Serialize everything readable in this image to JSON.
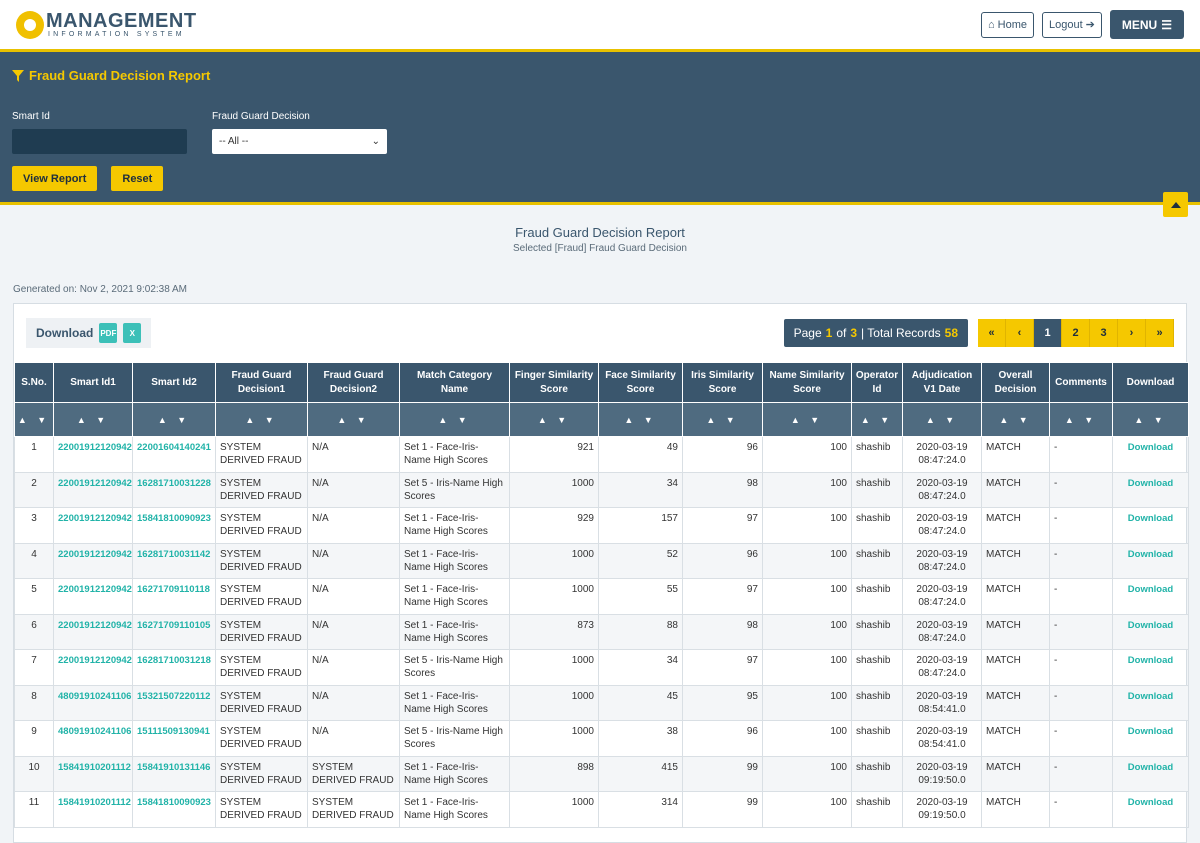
{
  "header": {
    "logo_main": "MANAGEMENT",
    "logo_sub": "INFORMATION SYSTEM",
    "home_label": "Home",
    "logout_label": "Logout",
    "menu_label": "MENU"
  },
  "filter": {
    "title": "Fraud Guard Decision Report",
    "smart_id_label": "Smart Id",
    "smart_id_value": "",
    "decision_label": "Fraud Guard Decision",
    "decision_selected": "-- All --",
    "view_report_label": "View Report",
    "reset_label": "Reset"
  },
  "report": {
    "title": "Fraud Guard Decision Report",
    "subtitle": "Selected [Fraud] Fraud Guard Decision",
    "generated": "Generated on: Nov 2, 2021 9:02:38 AM"
  },
  "toolbar": {
    "download_label": "Download",
    "page_label": "Page",
    "page_current": "1",
    "of_label": "of",
    "page_total": "3",
    "total_records_label": "| Total Records",
    "total_records": "58",
    "pages": [
      "1",
      "2",
      "3"
    ]
  },
  "table": {
    "columns": [
      "S.No.",
      "Smart Id1",
      "Smart Id2",
      "Fraud Guard Decision1",
      "Fraud Guard Decision2",
      "Match Category Name",
      "Finger Similarity Score",
      "Face Similarity Score",
      "Iris Similarity Score",
      "Name Similarity Score",
      "Operator Id",
      "Adjudication V1 Date",
      "Overall Decision",
      "Comments",
      "Download"
    ],
    "sort_label": "▲ ▼",
    "rows": [
      [
        "1",
        "22001912120942",
        "22001604140241",
        "SYSTEM DERIVED FRAUD",
        "N/A",
        "Set 1 - Face-Iris-Name High Scores",
        "921",
        "49",
        "96",
        "100",
        "shashib",
        "2020-03-19 08:47:24.0",
        "MATCH",
        "-",
        "Download"
      ],
      [
        "2",
        "22001912120942",
        "16281710031228",
        "SYSTEM DERIVED FRAUD",
        "N/A",
        "Set 5 - Iris-Name High Scores",
        "1000",
        "34",
        "98",
        "100",
        "shashib",
        "2020-03-19 08:47:24.0",
        "MATCH",
        "-",
        "Download"
      ],
      [
        "3",
        "22001912120942",
        "15841810090923",
        "SYSTEM DERIVED FRAUD",
        "N/A",
        "Set 1 - Face-Iris-Name High Scores",
        "929",
        "157",
        "97",
        "100",
        "shashib",
        "2020-03-19 08:47:24.0",
        "MATCH",
        "-",
        "Download"
      ],
      [
        "4",
        "22001912120942",
        "16281710031142",
        "SYSTEM DERIVED FRAUD",
        "N/A",
        "Set 1 - Face-Iris-Name High Scores",
        "1000",
        "52",
        "96",
        "100",
        "shashib",
        "2020-03-19 08:47:24.0",
        "MATCH",
        "-",
        "Download"
      ],
      [
        "5",
        "22001912120942",
        "16271709110118",
        "SYSTEM DERIVED FRAUD",
        "N/A",
        "Set 1 - Face-Iris-Name High Scores",
        "1000",
        "55",
        "97",
        "100",
        "shashib",
        "2020-03-19 08:47:24.0",
        "MATCH",
        "-",
        "Download"
      ],
      [
        "6",
        "22001912120942",
        "16271709110105",
        "SYSTEM DERIVED FRAUD",
        "N/A",
        "Set 1 - Face-Iris-Name High Scores",
        "873",
        "88",
        "98",
        "100",
        "shashib",
        "2020-03-19 08:47:24.0",
        "MATCH",
        "-",
        "Download"
      ],
      [
        "7",
        "22001912120942",
        "16281710031218",
        "SYSTEM DERIVED FRAUD",
        "N/A",
        "Set 5 - Iris-Name High Scores",
        "1000",
        "34",
        "97",
        "100",
        "shashib",
        "2020-03-19 08:47:24.0",
        "MATCH",
        "-",
        "Download"
      ],
      [
        "8",
        "48091910241106",
        "15321507220112",
        "SYSTEM DERIVED FRAUD",
        "N/A",
        "Set 1 - Face-Iris-Name High Scores",
        "1000",
        "45",
        "95",
        "100",
        "shashib",
        "2020-03-19 08:54:41.0",
        "MATCH",
        "-",
        "Download"
      ],
      [
        "9",
        "48091910241106",
        "15111509130941",
        "SYSTEM DERIVED FRAUD",
        "N/A",
        "Set 5 - Iris-Name High Scores",
        "1000",
        "38",
        "96",
        "100",
        "shashib",
        "2020-03-19 08:54:41.0",
        "MATCH",
        "-",
        "Download"
      ],
      [
        "10",
        "15841910201112",
        "15841910131146",
        "SYSTEM DERIVED FRAUD",
        "SYSTEM DERIVED FRAUD",
        "Set 1 - Face-Iris-Name High Scores",
        "898",
        "415",
        "99",
        "100",
        "shashib",
        "2020-03-19 09:19:50.0",
        "MATCH",
        "-",
        "Download"
      ],
      [
        "11",
        "15841910201112",
        "15841810090923",
        "SYSTEM DERIVED FRAUD",
        "SYSTEM DERIVED FRAUD",
        "Set 1 - Face-Iris-Name High Scores",
        "1000",
        "314",
        "99",
        "100",
        "shashib",
        "2020-03-19 09:19:50.0",
        "MATCH",
        "-",
        "Download"
      ]
    ]
  },
  "colors": {
    "primary": "#3a566d",
    "accent": "#f5c800",
    "link": "#21b3a8"
  }
}
